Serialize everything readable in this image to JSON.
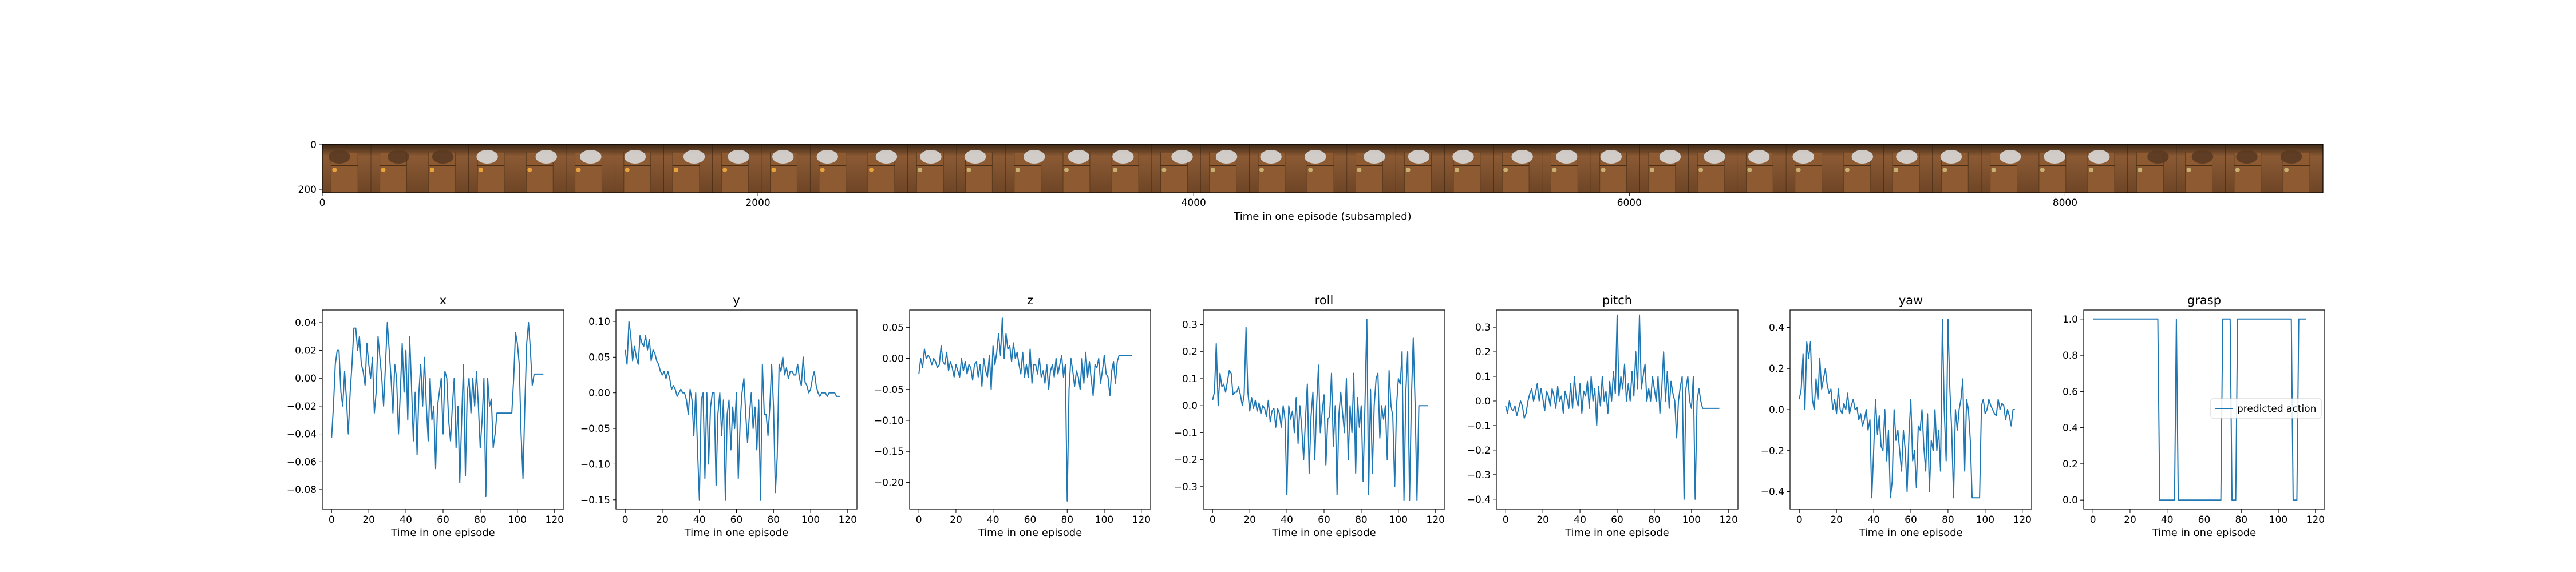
{
  "filmstrip": {
    "xlabel": "Time in one episode (subsampled)",
    "x_ticks": [
      "0",
      "2000",
      "4000",
      "6000",
      "8000"
    ],
    "y_ticks": [
      "0",
      "200"
    ],
    "frame_count": 41,
    "frame_width_units": 224,
    "x_range": [
      0,
      9184
    ]
  },
  "chart_data": [
    {
      "type": "line",
      "title": "x",
      "xlabel": "Time in one episode",
      "ylabel": "",
      "xlim": [
        -5,
        125
      ],
      "ylim": [
        -0.094,
        0.049
      ],
      "xticks": [
        0,
        20,
        40,
        60,
        80,
        100,
        120
      ],
      "yticks": [
        0.04,
        0.02,
        0.0,
        -0.02,
        -0.04,
        -0.06,
        -0.08
      ],
      "ytick_labels": [
        "0.04",
        "0.02",
        "0.00",
        "−0.02",
        "−0.04",
        "−0.06",
        "−0.08"
      ],
      "values": [
        -0.043,
        -0.02,
        0.01,
        0.02,
        0.02,
        -0.01,
        -0.02,
        0.005,
        -0.015,
        -0.04,
        -0.01,
        0.01,
        0.036,
        0.036,
        0.02,
        0.03,
        0.01,
        0.005,
        -0.005,
        0.025,
        0.01,
        0.0,
        0.015,
        -0.025,
        -0.01,
        0.03,
        0.015,
        0.0,
        -0.02,
        0.01,
        0.04,
        0.02,
        0.0,
        -0.025,
        0.01,
        0.0,
        -0.04,
        -0.01,
        0.025,
        -0.01,
        0.02,
        -0.03,
        0.03,
        -0.005,
        -0.045,
        -0.01,
        -0.055,
        -0.01,
        0.01,
        -0.02,
        0.015,
        -0.02,
        -0.045,
        0.0,
        -0.03,
        -0.02,
        -0.065,
        -0.02,
        -0.01,
        0.0,
        -0.04,
        0.005,
        0.0,
        -0.03,
        -0.045,
        -0.02,
        0.0,
        -0.05,
        -0.02,
        -0.075,
        -0.03,
        0.01,
        -0.07,
        -0.01,
        0.0,
        -0.025,
        0.0,
        -0.02,
        0.005,
        -0.02,
        -0.05,
        -0.03,
        0.0,
        -0.085,
        0.0,
        -0.02,
        -0.015,
        -0.05,
        -0.04,
        -0.025,
        -0.025,
        -0.025,
        -0.025,
        -0.025,
        -0.025,
        -0.025,
        -0.025,
        -0.025,
        0.0,
        0.033,
        0.025,
        0.01,
        -0.04,
        -0.072,
        -0.02,
        0.025,
        0.04,
        0.02,
        -0.005,
        0.003,
        0.003,
        0.003,
        0.003,
        0.003,
        0.003
      ],
      "legend": null
    },
    {
      "type": "line",
      "title": "y",
      "xlabel": "Time in one episode",
      "ylabel": "",
      "xlim": [
        -5,
        125
      ],
      "ylim": [
        -0.163,
        0.116
      ],
      "xticks": [
        0,
        20,
        40,
        60,
        80,
        100,
        120
      ],
      "yticks": [
        0.1,
        0.05,
        0.0,
        -0.05,
        -0.1,
        -0.15
      ],
      "ytick_labels": [
        "0.10",
        "0.05",
        "0.00",
        "−0.05",
        "−0.10",
        "−0.15"
      ],
      "values": [
        0.06,
        0.04,
        0.1,
        0.08,
        0.045,
        0.065,
        0.05,
        0.04,
        0.08,
        0.07,
        0.065,
        0.08,
        0.06,
        0.075,
        0.045,
        0.06,
        0.055,
        0.045,
        0.04,
        0.03,
        0.025,
        0.03,
        0.02,
        0.03,
        0.02,
        0.005,
        0.01,
        0.005,
        -0.005,
        0.0,
        0.005,
        0.0,
        0.0,
        -0.01,
        -0.03,
        0.005,
        -0.01,
        -0.06,
        0.0,
        -0.08,
        -0.15,
        -0.01,
        0.0,
        -0.12,
        0.0,
        -0.1,
        -0.02,
        0.0,
        0.0,
        -0.13,
        -0.03,
        0.0,
        -0.06,
        -0.01,
        -0.15,
        -0.03,
        -0.01,
        -0.08,
        -0.02,
        -0.05,
        0.0,
        -0.12,
        -0.04,
        0.0,
        0.02,
        -0.03,
        -0.07,
        -0.03,
        0.0,
        -0.05,
        -0.02,
        -0.08,
        -0.01,
        -0.15,
        0.04,
        -0.03,
        -0.03,
        -0.06,
        -0.02,
        0.04,
        -0.02,
        -0.14,
        -0.09,
        0.04,
        0.03,
        0.05,
        0.025,
        0.035,
        0.02,
        0.03,
        0.03,
        0.025,
        0.025,
        0.04,
        0.02,
        0.01,
        0.05,
        0.015,
        0.01,
        0.0,
        0.005,
        0.02,
        0.03,
        0.01,
        0.0,
        -0.005,
        0.0,
        0.0,
        0.0,
        -0.005,
        0.0,
        0.0,
        0.0,
        0.0,
        -0.005,
        -0.005,
        -0.005
      ],
      "legend": null
    },
    {
      "type": "line",
      "title": "z",
      "xlabel": "Time in one episode",
      "ylabel": "",
      "xlim": [
        -5,
        125
      ],
      "ylim": [
        -0.243,
        0.078
      ],
      "xticks": [
        0,
        20,
        40,
        60,
        80,
        100,
        120
      ],
      "yticks": [
        0.05,
        0.0,
        -0.05,
        -0.1,
        -0.15,
        -0.2
      ],
      "ytick_labels": [
        "0.05",
        "0.00",
        "−0.05",
        "−0.10",
        "−0.15",
        "−0.20"
      ],
      "values": [
        -0.025,
        0.0,
        -0.015,
        0.015,
        0.0,
        0.005,
        0.0,
        -0.01,
        0.0,
        -0.005,
        -0.015,
        -0.01,
        0.02,
        -0.005,
        -0.01,
        0.01,
        -0.02,
        -0.005,
        -0.015,
        -0.03,
        -0.01,
        -0.02,
        -0.03,
        0.0,
        -0.02,
        -0.005,
        -0.025,
        -0.01,
        -0.015,
        -0.035,
        -0.01,
        -0.005,
        -0.03,
        -0.01,
        -0.045,
        0.0,
        -0.02,
        -0.03,
        0.005,
        -0.05,
        0.02,
        -0.01,
        0.01,
        0.04,
        0.005,
        0.065,
        0.0,
        0.04,
        0.015,
        0.02,
        -0.005,
        0.025,
        0.0,
        0.01,
        -0.01,
        -0.025,
        0.01,
        -0.03,
        -0.01,
        -0.03,
        0.015,
        -0.04,
        -0.01,
        -0.01,
        -0.025,
        0.0,
        -0.03,
        -0.02,
        -0.04,
        -0.01,
        -0.05,
        -0.02,
        -0.01,
        -0.03,
        0.0,
        -0.025,
        -0.01,
        0.005,
        -0.03,
        -0.01,
        -0.23,
        -0.05,
        0.0,
        -0.02,
        -0.045,
        -0.02,
        -0.03,
        -0.05,
        0.0,
        -0.04,
        0.01,
        -0.03,
        -0.005,
        -0.035,
        -0.06,
        -0.01,
        -0.015,
        0.0,
        -0.04,
        -0.02,
        0.005,
        -0.025,
        -0.03,
        -0.06,
        -0.02,
        -0.005,
        -0.04,
        -0.005,
        0.005,
        0.005,
        0.005,
        0.005,
        0.005,
        0.005,
        0.005,
        0.005
      ],
      "legend": null
    },
    {
      "type": "line",
      "title": "roll",
      "xlabel": "Time in one episode",
      "ylabel": "",
      "xlim": [
        -5,
        125
      ],
      "ylim": [
        -0.383,
        0.354
      ],
      "xticks": [
        0,
        20,
        40,
        60,
        80,
        100,
        120
      ],
      "yticks": [
        0.3,
        0.2,
        0.1,
        0.0,
        -0.1,
        -0.2,
        -0.3
      ],
      "ytick_labels": [
        "0.3",
        "0.2",
        "0.1",
        "0.0",
        "−0.1",
        "−0.2",
        "−0.3"
      ],
      "values": [
        0.02,
        0.05,
        0.23,
        0.0,
        0.12,
        0.07,
        0.08,
        0.05,
        0.09,
        0.13,
        0.12,
        0.04,
        0.05,
        0.05,
        0.07,
        0.04,
        0.0,
        0.04,
        0.29,
        0.05,
        -0.02,
        0.03,
        -0.01,
        0.02,
        -0.02,
        0.01,
        -0.03,
        0.0,
        -0.01,
        -0.04,
        0.02,
        -0.06,
        -0.02,
        -0.01,
        -0.08,
        -0.01,
        -0.03,
        -0.08,
        0.0,
        -0.05,
        -0.33,
        0.0,
        -0.05,
        -0.02,
        -0.1,
        0.03,
        -0.14,
        0.0,
        -0.08,
        -0.2,
        -0.05,
        0.08,
        -0.25,
        -0.04,
        0.05,
        -0.2,
        0.0,
        0.15,
        -0.1,
        -0.02,
        0.04,
        -0.22,
        -0.05,
        -0.04,
        0.12,
        -0.15,
        0.0,
        -0.33,
        -0.03,
        0.05,
        -0.03,
        -0.1,
        0.1,
        -0.2,
        0.0,
        -0.1,
        0.12,
        -0.25,
        0.03,
        -0.08,
        0.0,
        -0.28,
        0.0,
        0.32,
        -0.33,
        0.06,
        -0.25,
        0.0,
        0.1,
        0.12,
        -0.12,
        0.0,
        -0.05,
        0.0,
        -0.2,
        0.13,
        0.0,
        -0.04,
        -0.3,
        0.0,
        0.1,
        0.08,
        0.2,
        -0.35,
        0.05,
        0.2,
        -0.35,
        0.03,
        0.25,
        0.0,
        -0.35,
        0.0,
        0.0,
        0.0,
        0.0,
        0.0,
        0.0
      ],
      "legend": null
    },
    {
      "type": "line",
      "title": "pitch",
      "xlabel": "Time in one episode",
      "ylabel": "",
      "xlim": [
        -5,
        125
      ],
      "ylim": [
        -0.44,
        0.37
      ],
      "xticks": [
        0,
        20,
        40,
        60,
        80,
        100,
        120
      ],
      "yticks": [
        0.3,
        0.2,
        0.1,
        0.0,
        -0.1,
        -0.2,
        -0.3,
        -0.4
      ],
      "ytick_labels": [
        "0.3",
        "0.2",
        "0.1",
        "0.0",
        "−0.1",
        "−0.2",
        "−0.3",
        "−0.4"
      ],
      "values": [
        -0.02,
        -0.05,
        0.0,
        -0.03,
        -0.04,
        -0.02,
        -0.06,
        -0.03,
        0.0,
        -0.02,
        -0.07,
        -0.05,
        0.0,
        0.03,
        0.05,
        0.0,
        0.03,
        0.07,
        0.0,
        0.05,
        0.01,
        -0.04,
        0.04,
        0.02,
        -0.02,
        0.05,
        0.02,
        -0.03,
        0.06,
        0.0,
        0.02,
        -0.05,
        0.04,
        0.01,
        -0.03,
        0.07,
        -0.03,
        0.1,
        0.01,
        -0.02,
        0.07,
        -0.05,
        0.04,
        0.02,
        0.08,
        -0.03,
        0.1,
        0.0,
        0.05,
        -0.1,
        0.06,
        -0.02,
        0.1,
        0.0,
        0.04,
        -0.05,
        0.08,
        0.0,
        0.12,
        0.03,
        0.35,
        0.02,
        0.1,
        0.05,
        0.15,
        0.0,
        0.07,
        0.0,
        0.12,
        0.02,
        0.2,
        0.05,
        0.35,
        0.05,
        0.1,
        0.15,
        0.0,
        0.05,
        0.0,
        0.1,
        0.05,
        0.0,
        0.1,
        -0.05,
        0.05,
        0.2,
        0.0,
        0.12,
        -0.03,
        0.08,
        0.03,
        0.0,
        -0.15,
        0.0,
        0.06,
        0.1,
        -0.4,
        0.05,
        0.1,
        0.0,
        -0.03,
        0.1,
        -0.4,
        0.0,
        0.05,
        0.0,
        -0.03,
        -0.03,
        -0.03,
        -0.03,
        -0.03,
        -0.03,
        -0.03,
        -0.03,
        -0.03,
        -0.03
      ],
      "legend": null
    },
    {
      "type": "line",
      "title": "yaw",
      "xlabel": "Time in one episode",
      "ylabel": "",
      "xlim": [
        -5,
        125
      ],
      "ylim": [
        -0.485,
        0.485
      ],
      "xticks": [
        0,
        20,
        40,
        60,
        80,
        100,
        120
      ],
      "yticks": [
        0.4,
        0.2,
        0.0,
        -0.2,
        -0.4
      ],
      "ytick_labels": [
        "0.4",
        "0.2",
        "0.0",
        "−0.2",
        "−0.4"
      ],
      "values": [
        0.05,
        0.1,
        0.27,
        0.0,
        0.33,
        0.25,
        0.33,
        0.05,
        0.0,
        0.15,
        0.05,
        0.25,
        0.1,
        0.15,
        0.2,
        0.12,
        0.08,
        0.1,
        0.0,
        0.05,
        -0.02,
        0.1,
        0.0,
        -0.02,
        0.03,
        0.0,
        0.08,
        -0.02,
        0.02,
        0.05,
        0.0,
        0.01,
        -0.05,
        -0.02,
        -0.08,
        -0.05,
        0.0,
        -0.1,
        -0.05,
        -0.43,
        -0.2,
        0.05,
        -0.12,
        -0.03,
        -0.18,
        -0.2,
        0.0,
        -0.25,
        -0.1,
        -0.43,
        -0.35,
        0.0,
        -0.15,
        -0.1,
        -0.2,
        -0.3,
        -0.1,
        -0.2,
        -0.4,
        -0.12,
        0.05,
        -0.25,
        -0.2,
        -0.38,
        -0.08,
        -0.1,
        0.0,
        -0.18,
        -0.3,
        -0.02,
        -0.4,
        -0.15,
        -0.2,
        0.0,
        -0.2,
        -0.1,
        -0.3,
        0.44,
        0.0,
        -0.25,
        0.44,
        0.1,
        -0.1,
        -0.43,
        0.0,
        -0.1,
        0.0,
        0.05,
        0.15,
        -0.3,
        0.05,
        0.0,
        -0.15,
        -0.43,
        -0.43,
        -0.43,
        -0.43,
        -0.43,
        0.02,
        0.05,
        -0.02,
        0.0,
        0.05,
        0.02,
        0.0,
        -0.02,
        -0.03,
        0.05,
        0.0,
        0.03,
        0.02,
        -0.05,
        0.0,
        -0.03,
        -0.08,
        0.0,
        0.0
      ],
      "legend": null
    },
    {
      "type": "line",
      "title": "grasp",
      "xlabel": "Time in one episode",
      "ylabel": "",
      "xlim": [
        -5,
        125
      ],
      "ylim": [
        -0.05,
        1.05
      ],
      "xticks": [
        0,
        20,
        40,
        60,
        80,
        100,
        120
      ],
      "yticks": [
        1.0,
        0.8,
        0.6,
        0.4,
        0.2,
        0.0
      ],
      "ytick_labels": [
        "1.0",
        "0.8",
        "0.6",
        "0.4",
        "0.2",
        "0.0"
      ],
      "values": [
        1,
        1,
        1,
        1,
        1,
        1,
        1,
        1,
        1,
        1,
        1,
        1,
        1,
        1,
        1,
        1,
        1,
        1,
        1,
        1,
        1,
        1,
        1,
        1,
        1,
        1,
        1,
        1,
        1,
        1,
        1,
        1,
        1,
        1,
        1,
        1,
        0,
        0,
        0,
        0,
        0,
        0,
        0,
        0,
        0,
        1,
        0,
        0,
        0,
        0,
        0,
        0,
        0,
        0,
        0,
        0,
        0,
        0,
        0,
        0,
        0,
        0,
        0,
        0,
        0,
        0,
        0,
        0,
        0,
        0,
        1,
        1,
        1,
        1,
        1,
        0,
        0,
        0,
        1,
        1,
        1,
        1,
        1,
        1,
        1,
        1,
        1,
        1,
        1,
        1,
        1,
        1,
        1,
        1,
        1,
        1,
        1,
        1,
        1,
        1,
        1,
        1,
        1,
        1,
        1,
        1,
        1,
        1,
        0,
        0,
        0,
        1,
        1,
        1,
        1,
        1
      ],
      "legend": "predicted action"
    }
  ],
  "colors": {
    "line": "#1f77b4",
    "axis": "#000000"
  }
}
